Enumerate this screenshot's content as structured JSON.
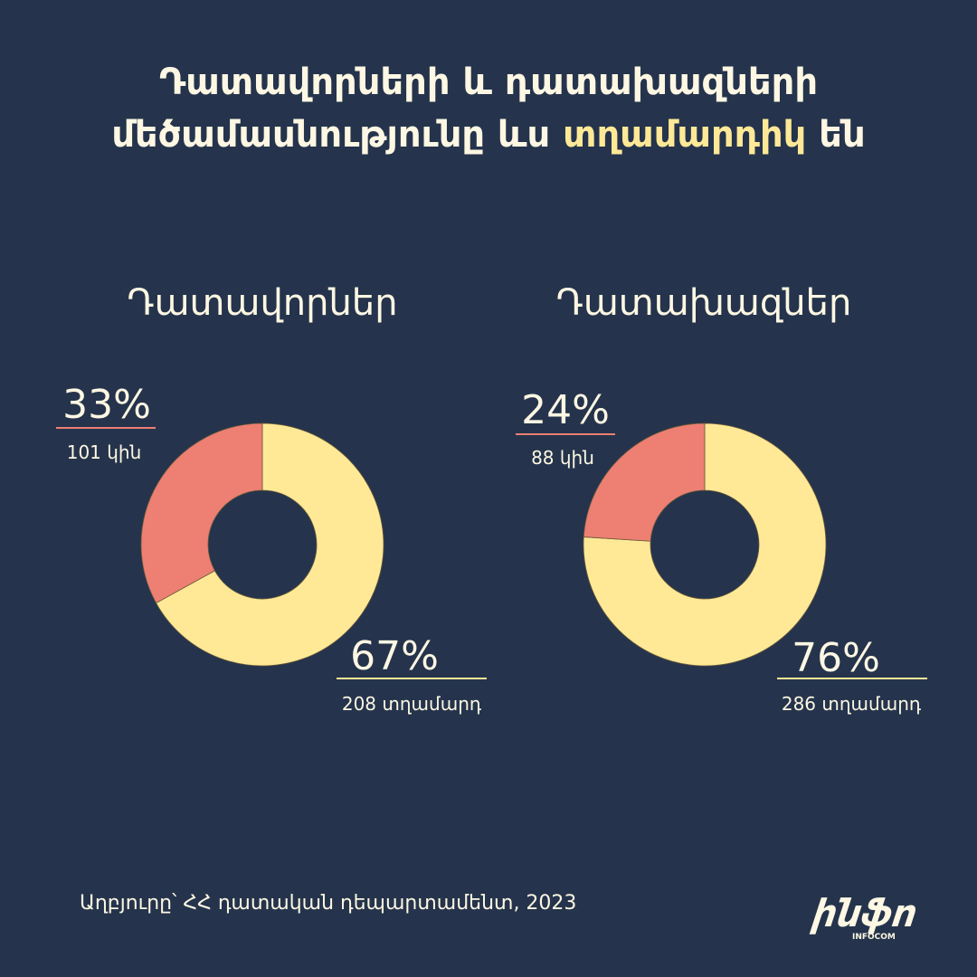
{
  "title": {
    "line1": "Դատավորների և դատախազների",
    "line2_prefix": "մեծամասնությունը ևս ",
    "line2_highlight": "տղամարդիկ",
    "line2_suffix": " են"
  },
  "colors": {
    "background": "#25344c",
    "women": "#ed7f73",
    "men": "#ffe997",
    "text": "#fdf7e3"
  },
  "chart_data": [
    {
      "type": "pie",
      "title": "Դատավորներ",
      "series": [
        {
          "name": "կին",
          "value": 101,
          "percent": 33,
          "percent_label": "33%",
          "count_label": "101 կին",
          "color": "#ed7f73"
        },
        {
          "name": "տղամարդ",
          "value": 208,
          "percent": 67,
          "percent_label": "67%",
          "count_label": "208 տղամարդ",
          "color": "#ffe997"
        }
      ]
    },
    {
      "type": "pie",
      "title": "Դատախազներ",
      "series": [
        {
          "name": "կին",
          "value": 88,
          "percent": 24,
          "percent_label": "24%",
          "count_label": "88 կին",
          "color": "#ed7f73"
        },
        {
          "name": "տղամարդ",
          "value": 286,
          "percent": 76,
          "percent_label": "76%",
          "count_label": "286 տղամարդ",
          "color": "#ffe997"
        }
      ]
    }
  ],
  "source": "Աղբյուրը՝ ՀՀ դատական դեպարտամենտ, 2023",
  "logo": {
    "text": "ինֆո",
    "subtext": "INFOCOM"
  }
}
